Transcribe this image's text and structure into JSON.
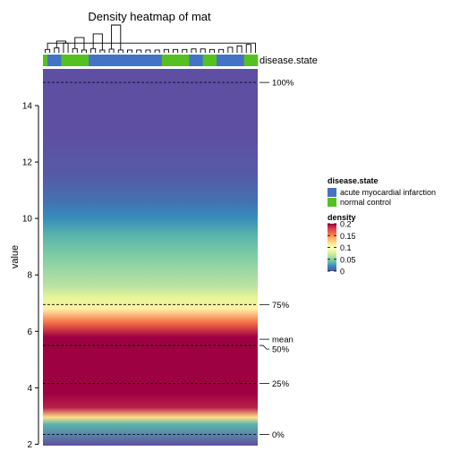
{
  "chart_data": {
    "type": "heatmap",
    "title": "Density heatmap of mat",
    "ylabel": "value",
    "ylim": [
      1.95,
      15.3
    ],
    "y_ticks": [
      2,
      4,
      6,
      8,
      10,
      12,
      14
    ],
    "annotation": {
      "name": "disease.state",
      "levels": [
        {
          "label": "acute myocardial infarction",
          "color": "#4472C4"
        },
        {
          "label": "normal control",
          "color": "#55C021"
        }
      ],
      "column_groups": [
        {
          "level": 1,
          "count": 1
        },
        {
          "level": 0,
          "count": 3
        },
        {
          "level": 1,
          "count": 6
        },
        {
          "level": 0,
          "count": 16
        },
        {
          "level": 1,
          "count": 6
        },
        {
          "level": 0,
          "count": 3
        },
        {
          "level": 1,
          "count": 3
        },
        {
          "level": 0,
          "count": 6
        },
        {
          "level": 1,
          "count": 3
        }
      ]
    },
    "density_legend": {
      "title": "density",
      "ticks": [
        {
          "value": 0.2,
          "label": "0.2"
        },
        {
          "value": 0.15,
          "label": "0.15"
        },
        {
          "value": 0.1,
          "label": "0.1"
        },
        {
          "value": 0.05,
          "label": "0.05"
        },
        {
          "value": 0,
          "label": "0"
        }
      ],
      "max": 0.2
    },
    "color_scale": [
      "#5E4FA2",
      "#3288BD",
      "#66C2A5",
      "#ABDDA4",
      "#E6F598",
      "#FFFFBF",
      "#FEE08B",
      "#FDAE61",
      "#F46D43",
      "#D53E4F",
      "#9E0142"
    ],
    "density_profile": [
      {
        "y": 1.95,
        "d": 0.0
      },
      {
        "y": 2.7,
        "d": 0.035
      },
      {
        "y": 2.95,
        "d": 0.12
      },
      {
        "y": 3.3,
        "d": 0.19
      },
      {
        "y": 3.8,
        "d": 0.2
      },
      {
        "y": 4.5,
        "d": 0.2
      },
      {
        "y": 5.2,
        "d": 0.2
      },
      {
        "y": 5.8,
        "d": 0.2
      },
      {
        "y": 6.3,
        "d": 0.16
      },
      {
        "y": 6.8,
        "d": 0.11
      },
      {
        "y": 7.2,
        "d": 0.08
      },
      {
        "y": 7.6,
        "d": 0.065
      },
      {
        "y": 8.2,
        "d": 0.055
      },
      {
        "y": 8.8,
        "d": 0.045
      },
      {
        "y": 9.4,
        "d": 0.035
      },
      {
        "y": 10.0,
        "d": 0.022
      },
      {
        "y": 10.6,
        "d": 0.012
      },
      {
        "y": 11.5,
        "d": 0.004
      },
      {
        "y": 13.0,
        "d": 0.0
      },
      {
        "y": 15.3,
        "d": 0.0
      }
    ],
    "quantile_lines": [
      {
        "label": "100%",
        "y": 14.82
      },
      {
        "label": "75%",
        "y": 6.95
      },
      {
        "label": "mean",
        "y": 5.72
      },
      {
        "label": "50%",
        "y": 5.5
      },
      {
        "label": "25%",
        "y": 4.15
      },
      {
        "label": "0%",
        "y": 2.35
      }
    ],
    "dendrogram": [
      {
        "a": 0,
        "b": 1,
        "h": 0.12
      },
      {
        "a": 2,
        "b": 3,
        "h": 0.18
      },
      {
        "a": 4,
        "b": 5,
        "h": 0.35
      },
      {
        "a": 6,
        "b": 7,
        "h": 0.15
      },
      {
        "a": 8,
        "b": 9,
        "h": 0.1
      },
      {
        "a": 10,
        "b": 11,
        "h": 0.15
      },
      {
        "a": 12,
        "b": 13,
        "h": 0.1
      },
      {
        "a": 14,
        "b": 15,
        "h": 0.13
      },
      {
        "a": 16,
        "b": 17,
        "h": 0.1
      },
      {
        "a": 18,
        "b": 19,
        "h": 0.1
      },
      {
        "a": 20,
        "b": 21,
        "h": 0.1
      },
      {
        "a": 22,
        "b": 23,
        "h": 0.1
      },
      {
        "a": 24,
        "b": 25,
        "h": 0.1
      },
      {
        "a": 26,
        "b": 27,
        "h": 0.12
      },
      {
        "a": 28,
        "b": 29,
        "h": 0.12
      },
      {
        "a": 30,
        "b": 31,
        "h": 0.12
      },
      {
        "a": 32,
        "b": 33,
        "h": 0.14
      },
      {
        "a": 34,
        "b": 35,
        "h": 0.14
      },
      {
        "a": 36,
        "b": 37,
        "h": 0.12
      },
      {
        "a": 38,
        "b": 39,
        "h": 0.12
      },
      {
        "a": 40,
        "b": 41,
        "h": 0.2
      },
      {
        "a": 42,
        "b": 43,
        "h": 0.25
      },
      {
        "a": 44,
        "b": 45,
        "h": 0.3
      },
      {
        "a": 46,
        "b": 47,
        "h": 0.35
      },
      {
        "a": 48,
        "b": 49,
        "h": 0.42
      },
      {
        "a": 50,
        "b": 51,
        "h": 0.55
      },
      {
        "a": 52,
        "b": 53,
        "h": 0.68
      },
      {
        "a": 54,
        "b": 55,
        "h": 1.0
      }
    ]
  }
}
